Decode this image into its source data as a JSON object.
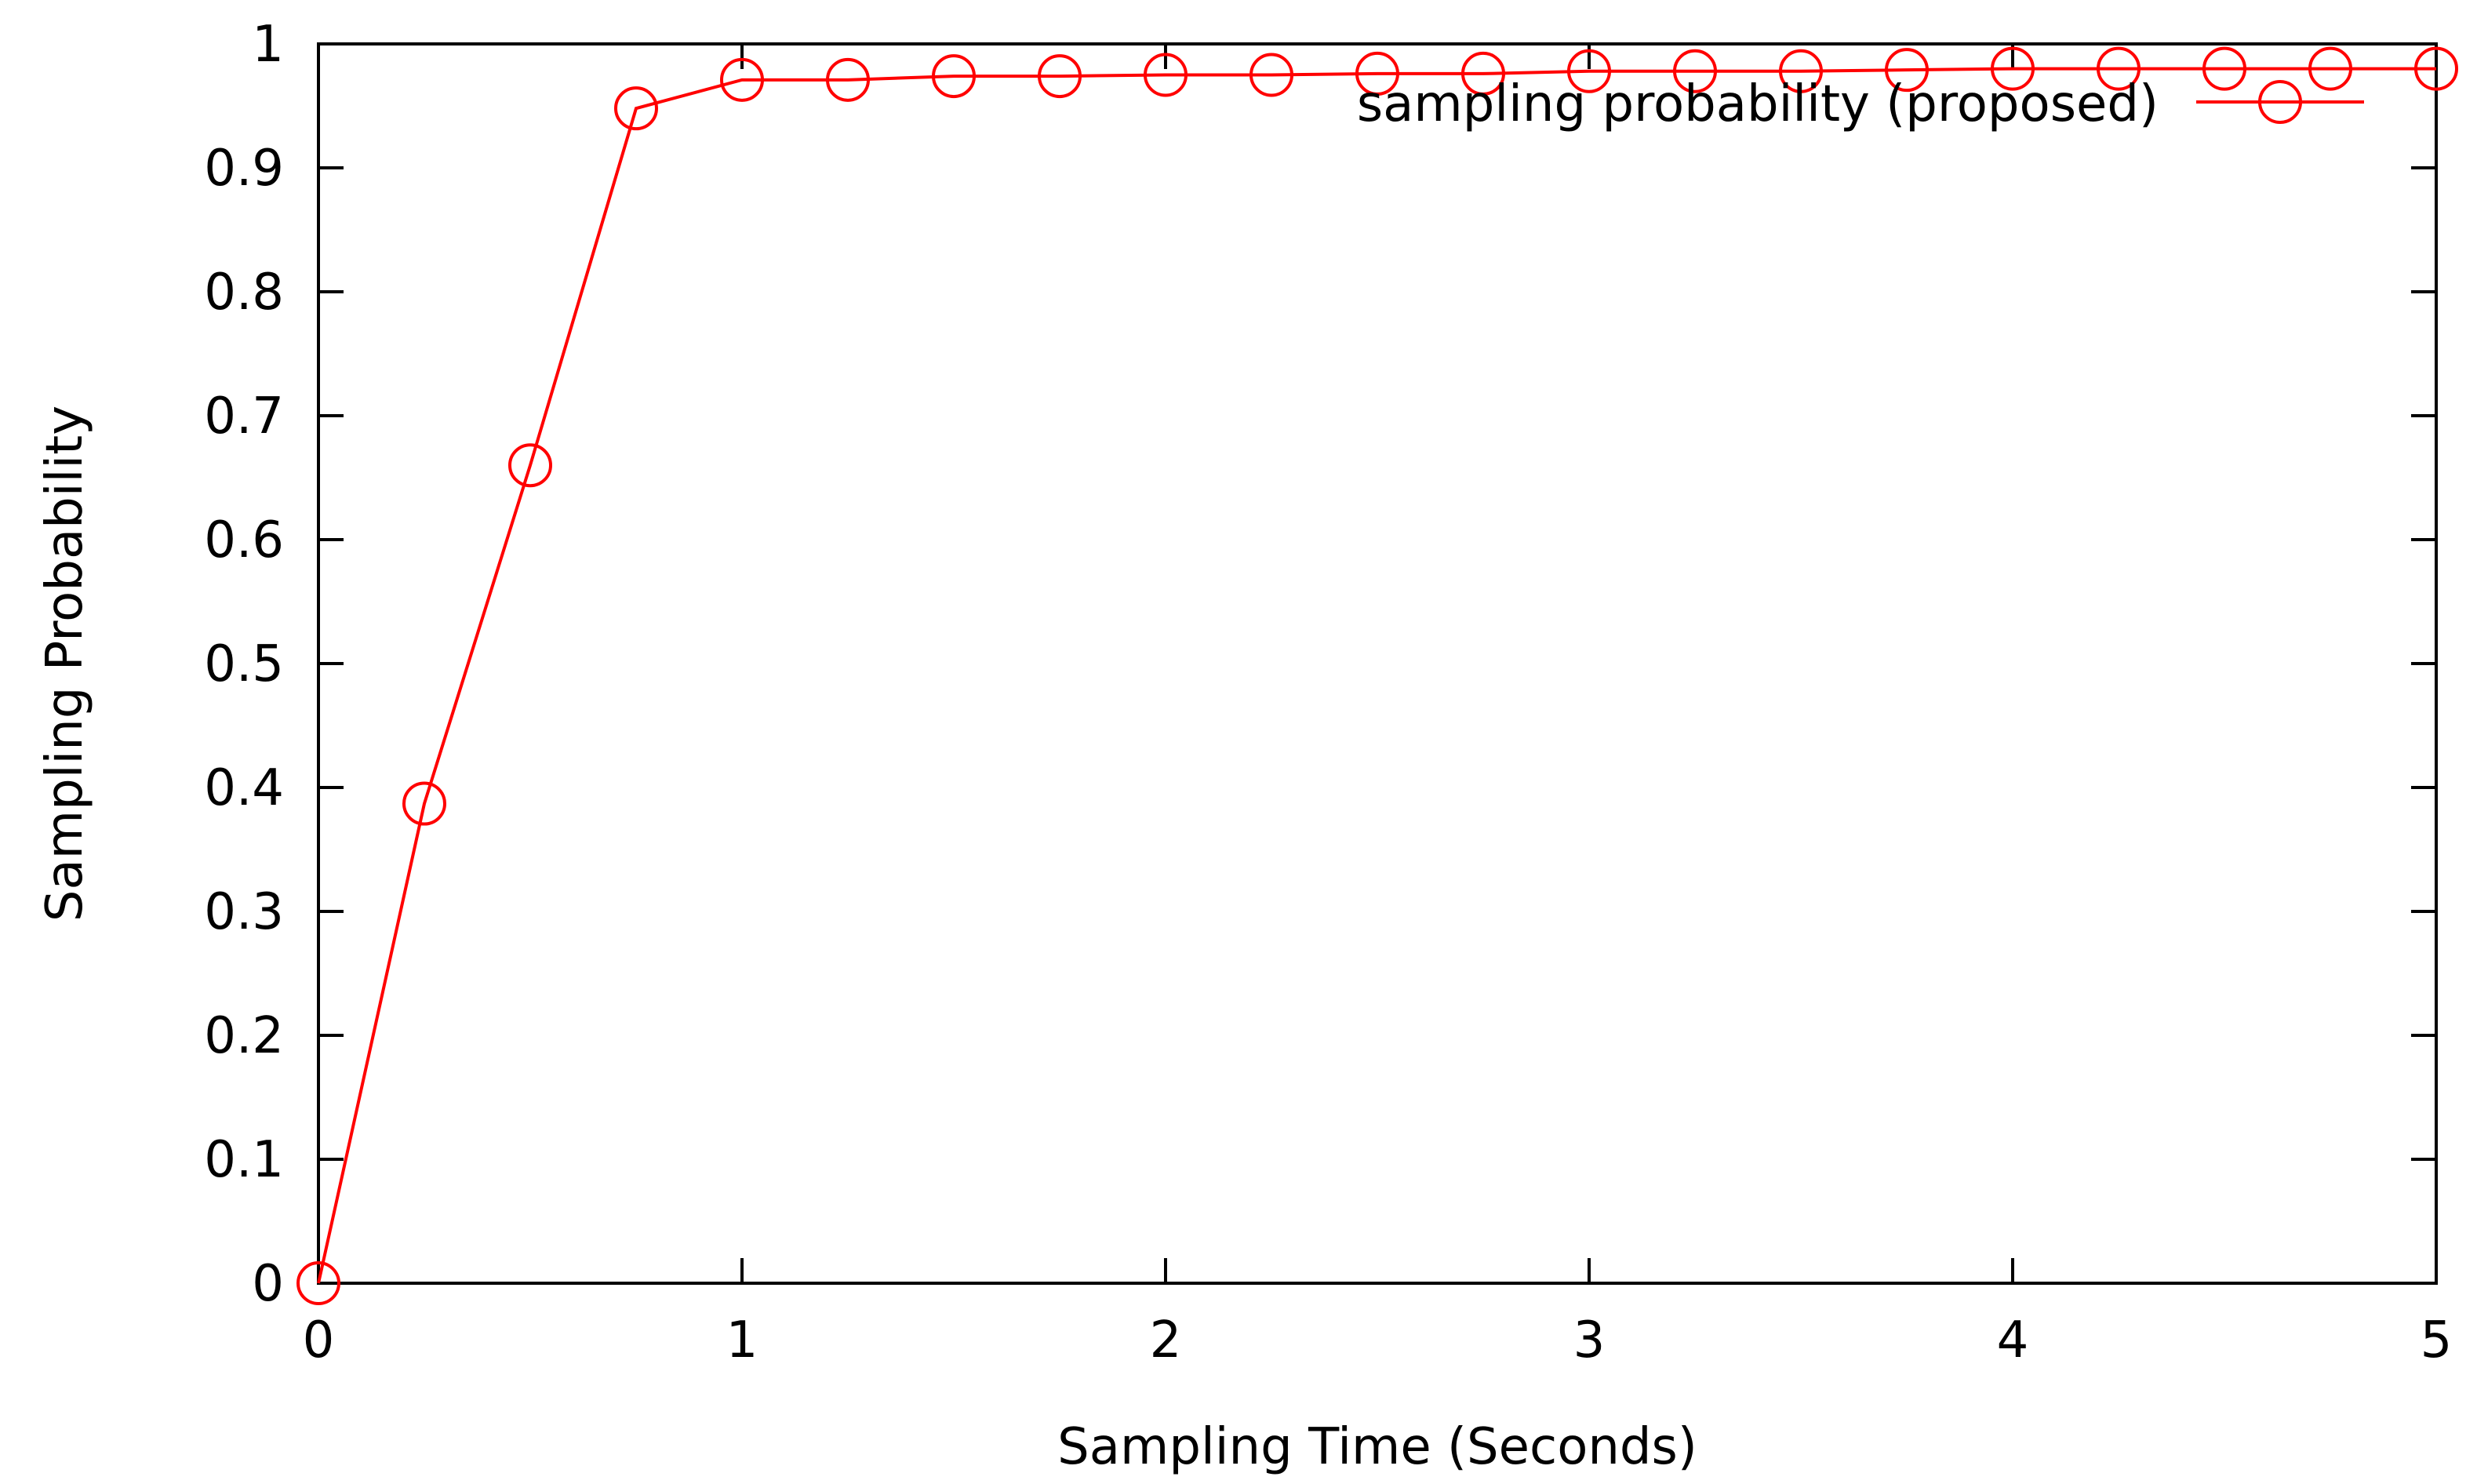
{
  "chart_data": {
    "type": "line",
    "title": "",
    "xlabel": "Sampling Time (Seconds)",
    "ylabel": "Sampling Probability",
    "xlim": [
      0,
      5
    ],
    "ylim": [
      0,
      1
    ],
    "xticks": [
      0,
      1,
      2,
      3,
      4,
      5
    ],
    "yticks": [
      0,
      0.1,
      0.2,
      0.3,
      0.4,
      0.5,
      0.6,
      0.7,
      0.8,
      0.9,
      1
    ],
    "xtick_labels": [
      "0",
      "1",
      "2",
      "3",
      "4",
      "5"
    ],
    "ytick_labels": [
      "0",
      "0.1",
      "0.2",
      "0.3",
      "0.4",
      "0.5",
      "0.6",
      "0.7",
      "0.8",
      "0.9",
      "1"
    ],
    "grid": false,
    "legend_position": "top-right",
    "series": [
      {
        "name": "sampling probability (proposed)",
        "color": "#ff0000",
        "marker": "open-circle",
        "x": [
          0,
          0.25,
          0.5,
          0.75,
          1,
          1.25,
          1.5,
          1.75,
          2,
          2.25,
          2.5,
          2.75,
          3,
          3.25,
          3.5,
          3.75,
          4,
          4.25,
          4.5,
          4.75,
          5
        ],
        "y": [
          0,
          0.387,
          0.66,
          0.948,
          0.971,
          0.971,
          0.974,
          0.974,
          0.975,
          0.975,
          0.976,
          0.976,
          0.978,
          0.978,
          0.978,
          0.979,
          0.98,
          0.98,
          0.98,
          0.98,
          0.98
        ]
      }
    ]
  }
}
